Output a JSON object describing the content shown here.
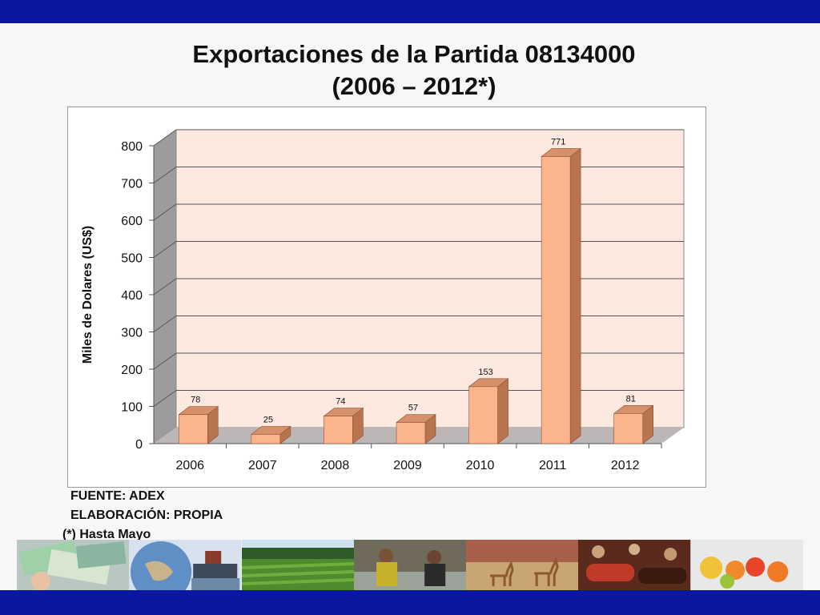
{
  "slide": {
    "title_line1": "Exportaciones de la Partida 08134000",
    "title_line2": "(2006 – 2012*)",
    "notes": [
      "FUENTE: ADEX",
      "ELABORACIÓN: PROPIA",
      "(*) Hasta Mayo"
    ],
    "band_color": "#0a17a0"
  },
  "photos": [
    {
      "subject": "money-banknotes"
    },
    {
      "subject": "globe-and-ship"
    },
    {
      "subject": "crop-field"
    },
    {
      "subject": "market-vendors"
    },
    {
      "subject": "vicunas-on-plain"
    },
    {
      "subject": "chocolate-and-nuts"
    },
    {
      "subject": "fruits"
    }
  ],
  "chart_data": {
    "type": "bar",
    "style": "3d-column",
    "categories": [
      "2006",
      "2007",
      "2008",
      "2009",
      "2010",
      "2011",
      "2012"
    ],
    "series": [
      {
        "values": [
          78,
          25,
          74,
          57,
          153,
          771,
          81
        ]
      }
    ],
    "data_labels": [
      "78",
      "25",
      "74",
      "57",
      "153",
      "771",
      "81"
    ],
    "ylabel": "Miles de Dolares (US$)",
    "xlabel": "",
    "ylim": [
      0,
      800
    ],
    "yticks": [
      0,
      100,
      200,
      300,
      400,
      500,
      600,
      700,
      800
    ],
    "grid": true,
    "legend": "none",
    "colors": {
      "bar_front": "#fbb48c",
      "bar_top": "#d6906a",
      "bar_side": "#b8734f",
      "wall": "#fde9e0",
      "floor": "#bdb6b6",
      "side_wall": "#9c9c9c"
    }
  }
}
